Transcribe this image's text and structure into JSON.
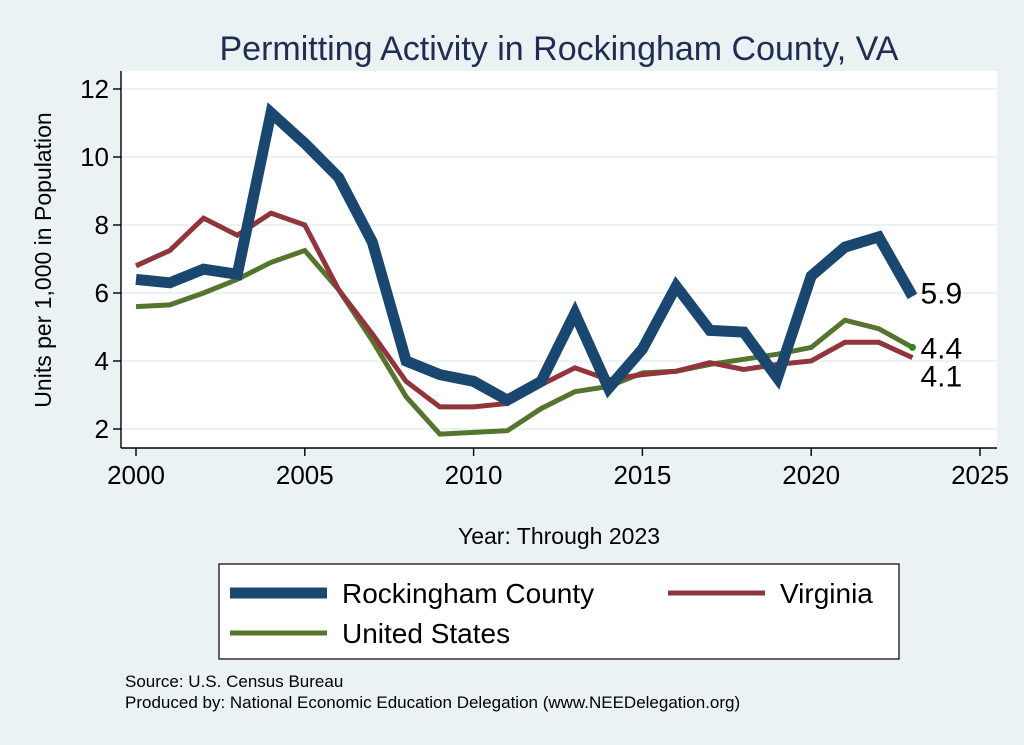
{
  "chart_data": {
    "type": "line",
    "title": "Permitting Activity in Rockingham County, VA",
    "xlabel": "Year: Through 2023",
    "ylabel": "Units per 1,000 in Population",
    "xlim": [
      2000,
      2025
    ],
    "ylim": [
      1.7,
      12.4
    ],
    "xticks": [
      2000,
      2005,
      2010,
      2015,
      2020,
      2025
    ],
    "yticks": [
      2,
      4,
      6,
      8,
      10,
      12
    ],
    "grid": "horizontal",
    "legend": "bottom",
    "x": [
      2000,
      2001,
      2002,
      2003,
      2004,
      2005,
      2006,
      2007,
      2008,
      2009,
      2010,
      2011,
      2012,
      2013,
      2014,
      2015,
      2016,
      2017,
      2018,
      2019,
      2020,
      2021,
      2022,
      2023
    ],
    "series": [
      {
        "name": "Rockingham County",
        "color": "#1a476f",
        "values": [
          6.4,
          6.3,
          6.7,
          6.55,
          11.3,
          10.4,
          9.4,
          7.5,
          4.0,
          3.6,
          3.4,
          2.85,
          3.4,
          5.4,
          3.2,
          4.35,
          6.2,
          4.9,
          4.85,
          3.5,
          6.5,
          7.35,
          7.65,
          5.9
        ],
        "end_label": "5.9"
      },
      {
        "name": "Virginia",
        "color": "#90353b",
        "values": [
          6.8,
          7.25,
          8.2,
          7.7,
          8.35,
          8.0,
          6.1,
          4.8,
          3.4,
          2.65,
          2.65,
          2.75,
          3.3,
          3.8,
          3.45,
          3.6,
          3.7,
          3.95,
          3.75,
          3.9,
          4.0,
          4.55,
          4.55,
          4.1
        ],
        "end_label": "4.1"
      },
      {
        "name": "United States",
        "color": "#55752f",
        "values": [
          5.6,
          5.65,
          6.0,
          6.4,
          6.9,
          7.25,
          6.1,
          4.6,
          2.95,
          1.85,
          1.9,
          1.95,
          2.6,
          3.1,
          3.25,
          3.65,
          3.7,
          3.9,
          4.05,
          4.2,
          4.4,
          5.2,
          4.95,
          4.4
        ],
        "end_label": "4.4"
      }
    ]
  },
  "source": {
    "line1": "Source: U.S. Census Bureau",
    "line2": "Produced by: National Economic Education Delegation (www.NEEDelegation.org)"
  }
}
